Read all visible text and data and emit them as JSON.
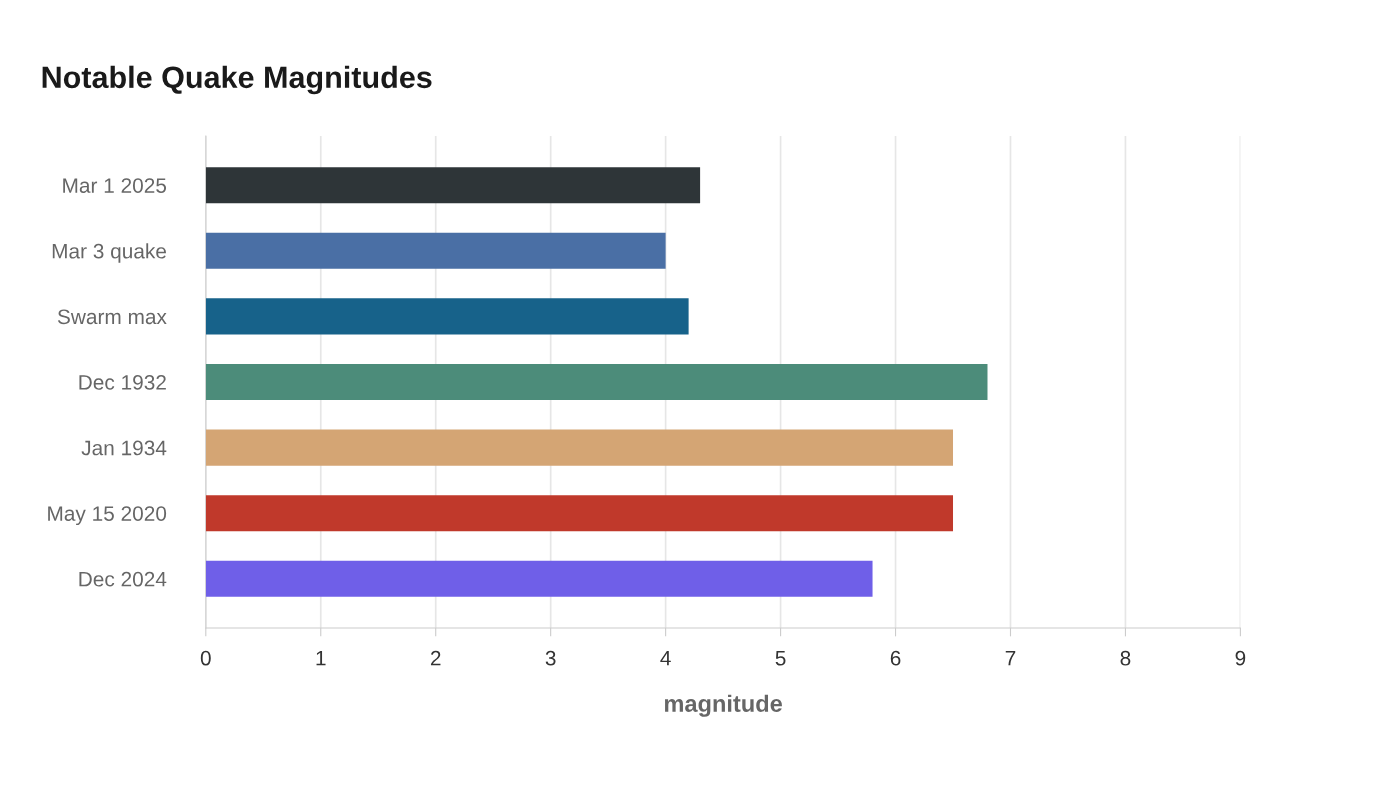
{
  "chart_data": {
    "type": "bar",
    "orientation": "horizontal",
    "title": "Notable Quake Magnitudes",
    "xlabel": "magnitude",
    "categories": [
      "Mar 1 2025",
      "Mar 3 quake",
      "Swarm max",
      "Dec 1932",
      "Jan 1934",
      "May 15 2020",
      "Dec 2024"
    ],
    "values": [
      4.3,
      4.0,
      4.2,
      6.8,
      6.5,
      6.5,
      5.8
    ],
    "colors": [
      "#2e3538",
      "#4a6fa5",
      "#17628a",
      "#4c8c7a",
      "#d4a574",
      "#c0392b",
      "#6f5fe8"
    ],
    "xlim": [
      0,
      9
    ],
    "xticks": [
      0,
      1,
      2,
      3,
      4,
      5,
      6,
      7,
      8,
      9
    ],
    "grid": "x"
  }
}
